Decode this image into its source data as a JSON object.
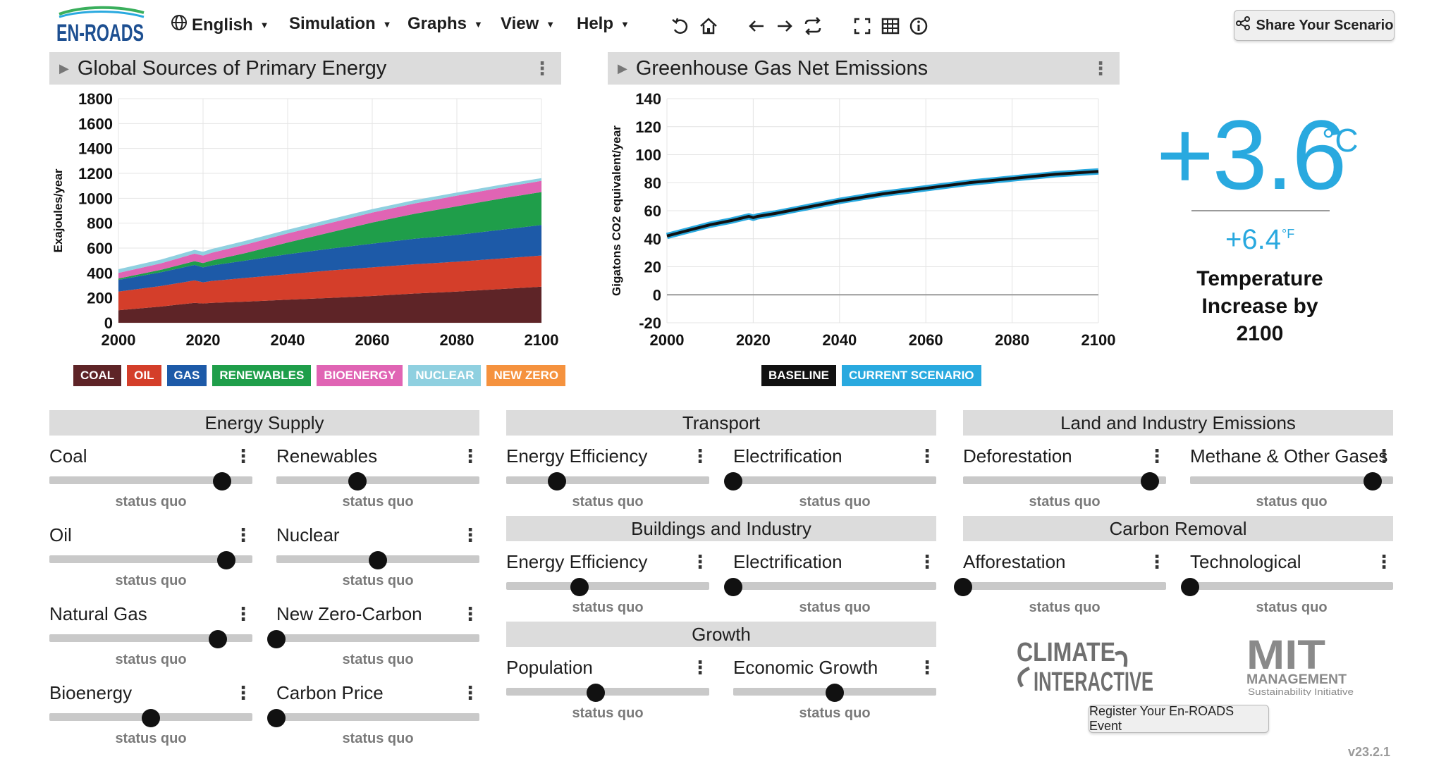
{
  "nav": {
    "logo_text": "EN-ROADS",
    "language": "English",
    "menus": [
      "Simulation",
      "Graphs",
      "View",
      "Help"
    ],
    "tools": [
      "undo-icon",
      "home-icon",
      "back-arrow-icon",
      "forward-arrow-icon",
      "swap-icon",
      "fullscreen-icon",
      "table-icon",
      "info-icon"
    ],
    "share_label": "Share Your Scenario"
  },
  "graph_left": {
    "title": "Global Sources of Primary Energy",
    "legend": [
      {
        "label": "COAL",
        "color": "#5e2427"
      },
      {
        "label": "OIL",
        "color": "#d43e2a"
      },
      {
        "label": "GAS",
        "color": "#1d5aa8"
      },
      {
        "label": "RENEWABLES",
        "color": "#1f9e4a"
      },
      {
        "label": "BIOENERGY",
        "color": "#e064b4"
      },
      {
        "label": "NUCLEAR",
        "color": "#8fd0e0"
      },
      {
        "label": "NEW ZERO",
        "color": "#f5923e"
      }
    ]
  },
  "graph_right": {
    "title": "Greenhouse Gas Net Emissions",
    "legend": [
      {
        "label": "BASELINE",
        "color": "#111111"
      },
      {
        "label": "CURRENT SCENARIO",
        "color": "#29a9df"
      }
    ]
  },
  "chart_data": [
    {
      "type": "area",
      "title": "Global Sources of Primary Energy",
      "ylabel": "Exajoules/year",
      "xlabel": "",
      "xlim": [
        2000,
        2100
      ],
      "ylim": [
        0,
        1800
      ],
      "x_ticks": [
        2000,
        2020,
        2040,
        2060,
        2080,
        2100
      ],
      "y_ticks": [
        0,
        200,
        400,
        600,
        800,
        1000,
        1200,
        1400,
        1600,
        1800
      ],
      "grid": true,
      "x": [
        2000,
        2010,
        2018,
        2020,
        2022,
        2030,
        2040,
        2050,
        2060,
        2070,
        2080,
        2090,
        2100
      ],
      "series": [
        {
          "name": "COAL",
          "color": "#5e2427",
          "values": [
            100,
            130,
            160,
            155,
            160,
            170,
            185,
            200,
            215,
            235,
            250,
            270,
            290
          ]
        },
        {
          "name": "OIL",
          "color": "#d43e2a",
          "values": [
            150,
            165,
            180,
            170,
            175,
            190,
            205,
            220,
            230,
            235,
            240,
            245,
            250
          ]
        },
        {
          "name": "GAS",
          "color": "#1d5aa8",
          "values": [
            95,
            110,
            125,
            120,
            125,
            140,
            160,
            175,
            190,
            205,
            215,
            230,
            245
          ]
        },
        {
          "name": "RENEWABLES",
          "color": "#1f9e4a",
          "values": [
            10,
            20,
            30,
            35,
            40,
            60,
            95,
            130,
            170,
            200,
            230,
            250,
            265
          ]
        },
        {
          "name": "BIOENERGY",
          "color": "#e064b4",
          "values": [
            45,
            52,
            60,
            60,
            62,
            68,
            72,
            76,
            80,
            83,
            86,
            88,
            90
          ]
        },
        {
          "name": "NUCLEAR",
          "color": "#8fd0e0",
          "values": [
            30,
            30,
            30,
            30,
            30,
            30,
            30,
            30,
            28,
            27,
            25,
            23,
            22
          ]
        },
        {
          "name": "NEW ZERO",
          "color": "#f5923e",
          "values": [
            0,
            0,
            0,
            0,
            0,
            0,
            0,
            0,
            0,
            0,
            0,
            0,
            0
          ]
        }
      ]
    },
    {
      "type": "line",
      "title": "Greenhouse Gas Net Emissions",
      "ylabel": "Gigatons CO2 equivalent/year",
      "xlabel": "",
      "xlim": [
        2000,
        2100
      ],
      "ylim": [
        -20,
        140
      ],
      "x_ticks": [
        2000,
        2020,
        2040,
        2060,
        2080,
        2100
      ],
      "y_ticks": [
        -20,
        0,
        20,
        40,
        60,
        80,
        100,
        120,
        140
      ],
      "grid": true,
      "x": [
        2000,
        2005,
        2010,
        2015,
        2019,
        2020,
        2021,
        2025,
        2030,
        2040,
        2050,
        2060,
        2070,
        2080,
        2090,
        2100
      ],
      "series": [
        {
          "name": "BASELINE",
          "color": "#111111",
          "values": [
            42,
            46,
            50,
            53,
            56,
            55,
            56,
            58,
            61,
            67,
            72,
            76,
            80,
            83,
            86,
            88
          ]
        },
        {
          "name": "CURRENT SCENARIO",
          "color": "#29a9df",
          "values": [
            42,
            46,
            50,
            53,
            56,
            55,
            56,
            58,
            61,
            67,
            72,
            76,
            80,
            83,
            86,
            88
          ]
        }
      ]
    }
  ],
  "temperature": {
    "celsius": "+3.6",
    "celsius_unit": "°C",
    "fahrenheit": "+6.4",
    "fahrenheit_unit": "°F",
    "caption_line1": "Temperature",
    "caption_line2": "Increase by",
    "caption_line3": "2100"
  },
  "sections": {
    "energy_supply": "Energy Supply",
    "transport": "Transport",
    "land": "Land and Industry Emissions",
    "buildings": "Buildings and Industry",
    "carbon_removal": "Carbon Removal",
    "growth": "Growth"
  },
  "status_text": "status quo",
  "sliders": [
    {
      "id": "coal",
      "label": "Coal",
      "value": 0.85,
      "tick": 0.85
    },
    {
      "id": "renewables",
      "label": "Renewables",
      "value": 0.4,
      "tick": 0.4
    },
    {
      "id": "oil",
      "label": "Oil",
      "value": 0.87,
      "tick": 0.87
    },
    {
      "id": "nuclear",
      "label": "Nuclear",
      "value": 0.5,
      "tick": 0.5
    },
    {
      "id": "natural-gas",
      "label": "Natural Gas",
      "value": 0.83,
      "tick": 0.83
    },
    {
      "id": "new-zero-carbon",
      "label": "New Zero-Carbon",
      "value": 0.0,
      "tick": 0.0
    },
    {
      "id": "bioenergy",
      "label": "Bioenergy",
      "value": 0.5,
      "tick": 0.5
    },
    {
      "id": "carbon-price",
      "label": "Carbon Price",
      "value": 0.0,
      "tick": 0.0
    },
    {
      "id": "transport-efficiency",
      "label": "Energy Efficiency",
      "value": 0.25,
      "tick": 0.25
    },
    {
      "id": "transport-electrification",
      "label": "Electrification",
      "value": 0.0,
      "tick": 0.0
    },
    {
      "id": "buildings-efficiency",
      "label": "Energy Efficiency",
      "value": 0.36,
      "tick": 0.36
    },
    {
      "id": "buildings-electrification",
      "label": "Electrification",
      "value": 0.0,
      "tick": 0.0
    },
    {
      "id": "population",
      "label": "Population",
      "value": 0.44,
      "tick": 0.44
    },
    {
      "id": "economic-growth",
      "label": "Economic Growth",
      "value": 0.5,
      "tick": 0.5
    },
    {
      "id": "deforestation",
      "label": "Deforestation",
      "value": 0.92,
      "tick": 0.92
    },
    {
      "id": "methane",
      "label": "Methane & Other Gases",
      "value": 0.9,
      "tick": 0.9
    },
    {
      "id": "afforestation",
      "label": "Afforestation",
      "value": 0.0,
      "tick": 0.0
    },
    {
      "id": "technological",
      "label": "Technological",
      "value": 0.0,
      "tick": 0.0
    }
  ],
  "footer": {
    "ci_logo_line1": "CLIMATE",
    "ci_logo_line2": "INTERACTIVE",
    "mit_logo_line1": "MIT",
    "mit_logo_line2": "MANAGEMENT",
    "mit_logo_line3": "Sustainability Initiative",
    "register_label": "Register Your En-ROADS Event",
    "version": "v23.2.1"
  }
}
